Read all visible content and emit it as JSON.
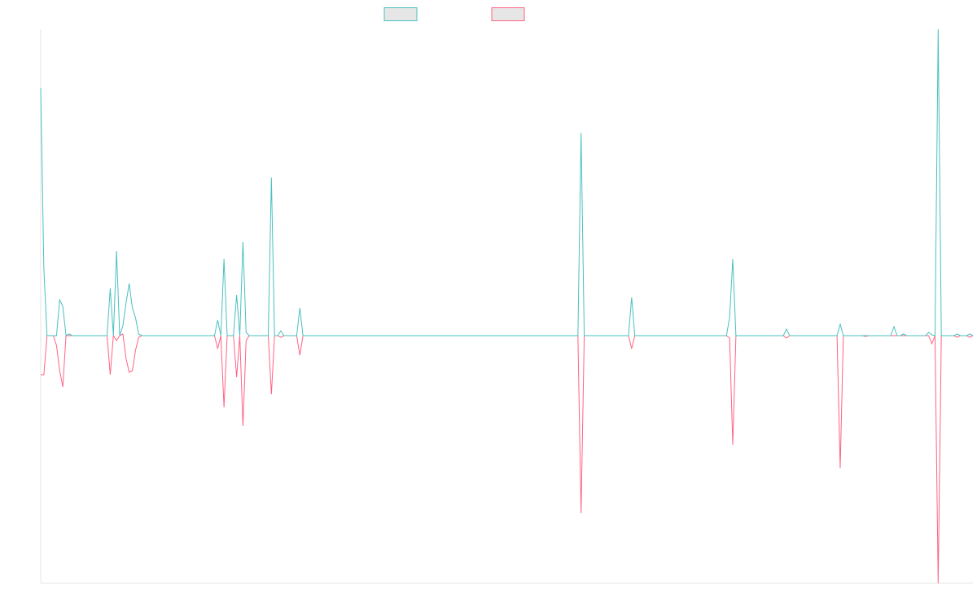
{
  "chart_data": {
    "type": "line",
    "ylim": [
      -76,
      94
    ],
    "series": [
      {
        "color": "#4bc0c0",
        "values": [
          76,
          20.5,
          0,
          0,
          0,
          0,
          11,
          9,
          0,
          0.5,
          0,
          0,
          0,
          0,
          0,
          0,
          0,
          0,
          0,
          0,
          0,
          0,
          14.5,
          0,
          26,
          0,
          3,
          10,
          16,
          8.5,
          5.5,
          0.5,
          0,
          0,
          0,
          0,
          0,
          0,
          0,
          0,
          0,
          0,
          0,
          0,
          0,
          0,
          0,
          0,
          0,
          0,
          0,
          0,
          0,
          0,
          0,
          0,
          4.75,
          0,
          23.5,
          0,
          0,
          0,
          12.5,
          0,
          28.75,
          1,
          0,
          0,
          0,
          0,
          0,
          0,
          0,
          48.5,
          0,
          0,
          1.5,
          0,
          0,
          0,
          0,
          0,
          8.5,
          0,
          0,
          0,
          0,
          0,
          0,
          0,
          0,
          0,
          0,
          0,
          0,
          0,
          0,
          0,
          0,
          0,
          0,
          0,
          0,
          0,
          0,
          0,
          0,
          0,
          0,
          0,
          0,
          0,
          0,
          0,
          0,
          0,
          0,
          0,
          0,
          0,
          0,
          0,
          0,
          0,
          0,
          0,
          0,
          0,
          0,
          0,
          0,
          0,
          0,
          0,
          0,
          0,
          0,
          0,
          0,
          0,
          0,
          0,
          0,
          0,
          0,
          0,
          0,
          0,
          0,
          0,
          0,
          0,
          0,
          0,
          0,
          0,
          0,
          0,
          0,
          0,
          0,
          0,
          0,
          0,
          0,
          0,
          0,
          0,
          0,
          0,
          0,
          62.25,
          0,
          0,
          0,
          0,
          0,
          0,
          0,
          0,
          0,
          0,
          0,
          0,
          0,
          0,
          0,
          11.75,
          0,
          0,
          0,
          0,
          0,
          0,
          0,
          0,
          0,
          0,
          0,
          0,
          0,
          0,
          0,
          0,
          0,
          0,
          0,
          0,
          0,
          0,
          0,
          0,
          0,
          0,
          0,
          0,
          0,
          0,
          5.5,
          23.5,
          0,
          0,
          0,
          0,
          0,
          0,
          0,
          0,
          0,
          0,
          0,
          0,
          0,
          0,
          0,
          0,
          2,
          0,
          0,
          0,
          0,
          0,
          0,
          0,
          0,
          0,
          0,
          0,
          0,
          0,
          0,
          0,
          0,
          3.5,
          0,
          0,
          0,
          0,
          0,
          0,
          0,
          0,
          0,
          0,
          0,
          0,
          0,
          0,
          0,
          0,
          2.75,
          0,
          0,
          0.5,
          0,
          0,
          0,
          0,
          0,
          0,
          0,
          1,
          0.25,
          0,
          94,
          0,
          0,
          0,
          0,
          0,
          0.5,
          0,
          0,
          0,
          0.5,
          0
        ]
      },
      {
        "color": "#ff6384",
        "values": [
          -12,
          -12,
          0,
          0,
          0,
          -3,
          -10.75,
          -15.75,
          0,
          0,
          0,
          0,
          0,
          0,
          0,
          0,
          0,
          0,
          0,
          0,
          0,
          0,
          -12,
          0,
          -1.5,
          0,
          0.5,
          -7,
          -11.25,
          -10.75,
          -4.5,
          -0.5,
          0,
          0,
          0,
          0,
          0,
          0,
          0,
          0,
          0,
          0,
          0,
          0,
          0,
          0,
          0,
          0,
          0,
          0,
          0,
          0,
          0,
          0,
          0,
          0,
          -4,
          0,
          -22,
          0,
          0,
          0,
          -12.75,
          0,
          -27.75,
          -1.5,
          0,
          0,
          0,
          0,
          0,
          0,
          0,
          -18,
          0,
          0,
          -0.5,
          0,
          0,
          0,
          0,
          0,
          -6,
          0,
          0,
          0,
          0,
          0,
          0,
          0,
          0,
          0,
          0,
          0,
          0,
          0,
          0,
          0,
          0,
          0,
          0,
          0,
          0,
          0,
          0,
          0,
          0,
          0,
          0,
          0,
          0,
          0,
          0,
          0,
          0,
          0,
          0,
          0,
          0,
          0,
          0,
          0,
          0,
          0,
          0,
          0,
          0,
          0,
          0,
          0,
          0,
          0,
          0,
          0,
          0,
          0,
          0,
          0,
          0,
          0,
          0,
          0,
          0,
          0,
          0,
          0,
          0,
          0,
          0,
          0,
          0,
          0,
          0,
          0,
          0,
          0,
          0,
          0,
          0,
          0,
          0,
          0,
          0,
          0,
          0,
          0,
          0,
          0,
          0,
          0,
          0,
          -54.5,
          0,
          0,
          0,
          0,
          0,
          0,
          0,
          0,
          0,
          0,
          0,
          0,
          0,
          0,
          0,
          -4,
          0,
          0,
          0,
          0,
          0,
          0,
          0,
          0,
          0,
          0,
          0,
          0,
          0,
          0,
          0,
          0,
          0,
          0,
          0,
          0,
          0,
          0,
          0,
          0,
          0,
          0,
          0,
          0,
          0,
          0,
          -0.75,
          -33.5,
          0,
          0,
          0,
          0,
          0,
          0,
          0,
          0,
          0,
          0,
          0,
          0,
          0,
          0,
          0,
          0,
          -0.75,
          0,
          0,
          0,
          0,
          0,
          0,
          0,
          0,
          0,
          0,
          0,
          0,
          0,
          0,
          0,
          0,
          -40.75,
          0,
          0,
          0,
          0,
          0,
          0,
          0,
          -0.25,
          0,
          0,
          0,
          0,
          0,
          0,
          0,
          0,
          0,
          0,
          0,
          0,
          0,
          0,
          0,
          0,
          0,
          0,
          0,
          0,
          -2.5,
          0,
          -76,
          0,
          0,
          0,
          0,
          0,
          -0.5,
          0,
          0,
          0,
          -0.5,
          0
        ]
      }
    ]
  }
}
